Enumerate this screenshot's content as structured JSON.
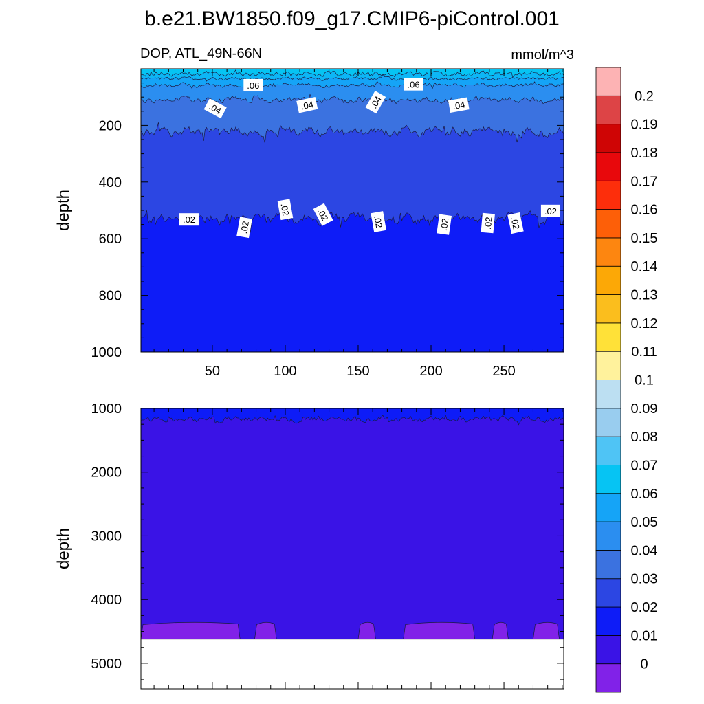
{
  "title": "b.e21.BW1850.f09_g17.CMIP6-piControl.001",
  "chart_data": {
    "type": "heatmap",
    "subtitle_left": "DOP, ATL_49N-66N",
    "units": "mmol/m^3",
    "xlim": [
      1,
      291
    ],
    "x_ticks": [
      50,
      100,
      150,
      200,
      250
    ],
    "colors": {
      "fill_0": "#8122e8",
      "fill_0_01": "#3a13e6",
      "fill_0_02": "#0e1cf7",
      "fill_0_03": "#2c46e3",
      "fill_0_04": "#3b72e0",
      "fill_0_05": "#2b8ef0",
      "fill_0_06": "#15a4f7",
      "fill_0_07": "#06c4f3"
    },
    "colorbar": {
      "labels": [
        "0",
        "0.01",
        "0.02",
        "0.03",
        "0.04",
        "0.05",
        "0.06",
        "0.07",
        "0.08",
        "0.09",
        "0.1",
        "0.11",
        "0.12",
        "0.13",
        "0.14",
        "0.15",
        "0.16",
        "0.17",
        "0.18",
        "0.19",
        "0.2"
      ],
      "colors": [
        "#8122e8",
        "#3a13e6",
        "#0e1cf7",
        "#2c46e3",
        "#3b72e0",
        "#2b8ef0",
        "#15a4f7",
        "#06c4f3",
        "#4fc4f5",
        "#99cdef",
        "#bcdff2",
        "#fff29c",
        "#ffe138",
        "#fbbe1d",
        "#fca806",
        "#fd8610",
        "#fd5f08",
        "#fd2e0b",
        "#e8080c",
        "#cf0505",
        "#dd4446",
        "#fdb3b4"
      ]
    },
    "panels": [
      {
        "ylabel": "depth",
        "ylim": [
          0,
          1000
        ],
        "y_ticks": [
          200,
          400,
          600,
          800,
          1000
        ],
        "contour_levels": [
          0.07,
          0.06,
          0.05,
          0.04,
          0.03,
          0.02
        ],
        "contour_labels": [
          {
            "text": ".06",
            "x": 78,
            "depth": 58,
            "angle": 0
          },
          {
            "text": ".06",
            "x": 188,
            "depth": 55,
            "angle": 0
          },
          {
            "text": ".04",
            "x": 52,
            "depth": 140,
            "angle": 28
          },
          {
            "text": ".04",
            "x": 115,
            "depth": 128,
            "angle": -12
          },
          {
            "text": ".04",
            "x": 162,
            "depth": 118,
            "angle": -60
          },
          {
            "text": ".04",
            "x": 219,
            "depth": 128,
            "angle": -10
          },
          {
            "text": ".02",
            "x": 34,
            "depth": 532,
            "angle": 0
          },
          {
            "text": ".02",
            "x": 72,
            "depth": 560,
            "angle": -80
          },
          {
            "text": ".02",
            "x": 100,
            "depth": 497,
            "angle": 80
          },
          {
            "text": ".02",
            "x": 126,
            "depth": 515,
            "angle": 62
          },
          {
            "text": ".02",
            "x": 164,
            "depth": 540,
            "angle": 80
          },
          {
            "text": ".02",
            "x": 209,
            "depth": 550,
            "angle": -82
          },
          {
            "text": ".02",
            "x": 239,
            "depth": 545,
            "angle": -85
          },
          {
            "text": ".02",
            "x": 258,
            "depth": 545,
            "angle": 78
          },
          {
            "text": ".02",
            "x": 282,
            "depth": 502,
            "angle": 0
          }
        ]
      },
      {
        "ylabel": "depth",
        "ylim": [
          1000,
          5400
        ],
        "y_ticks": [
          1000,
          2000,
          3000,
          4000,
          5000
        ],
        "bottom_depth": 4620,
        "zero_band_depth": 4370,
        "zero_band_segments": [
          [
            1,
            69
          ],
          [
            79,
            94
          ],
          [
            150,
            162
          ],
          [
            181,
            230
          ],
          [
            242,
            253
          ],
          [
            270,
            288
          ]
        ]
      }
    ]
  }
}
